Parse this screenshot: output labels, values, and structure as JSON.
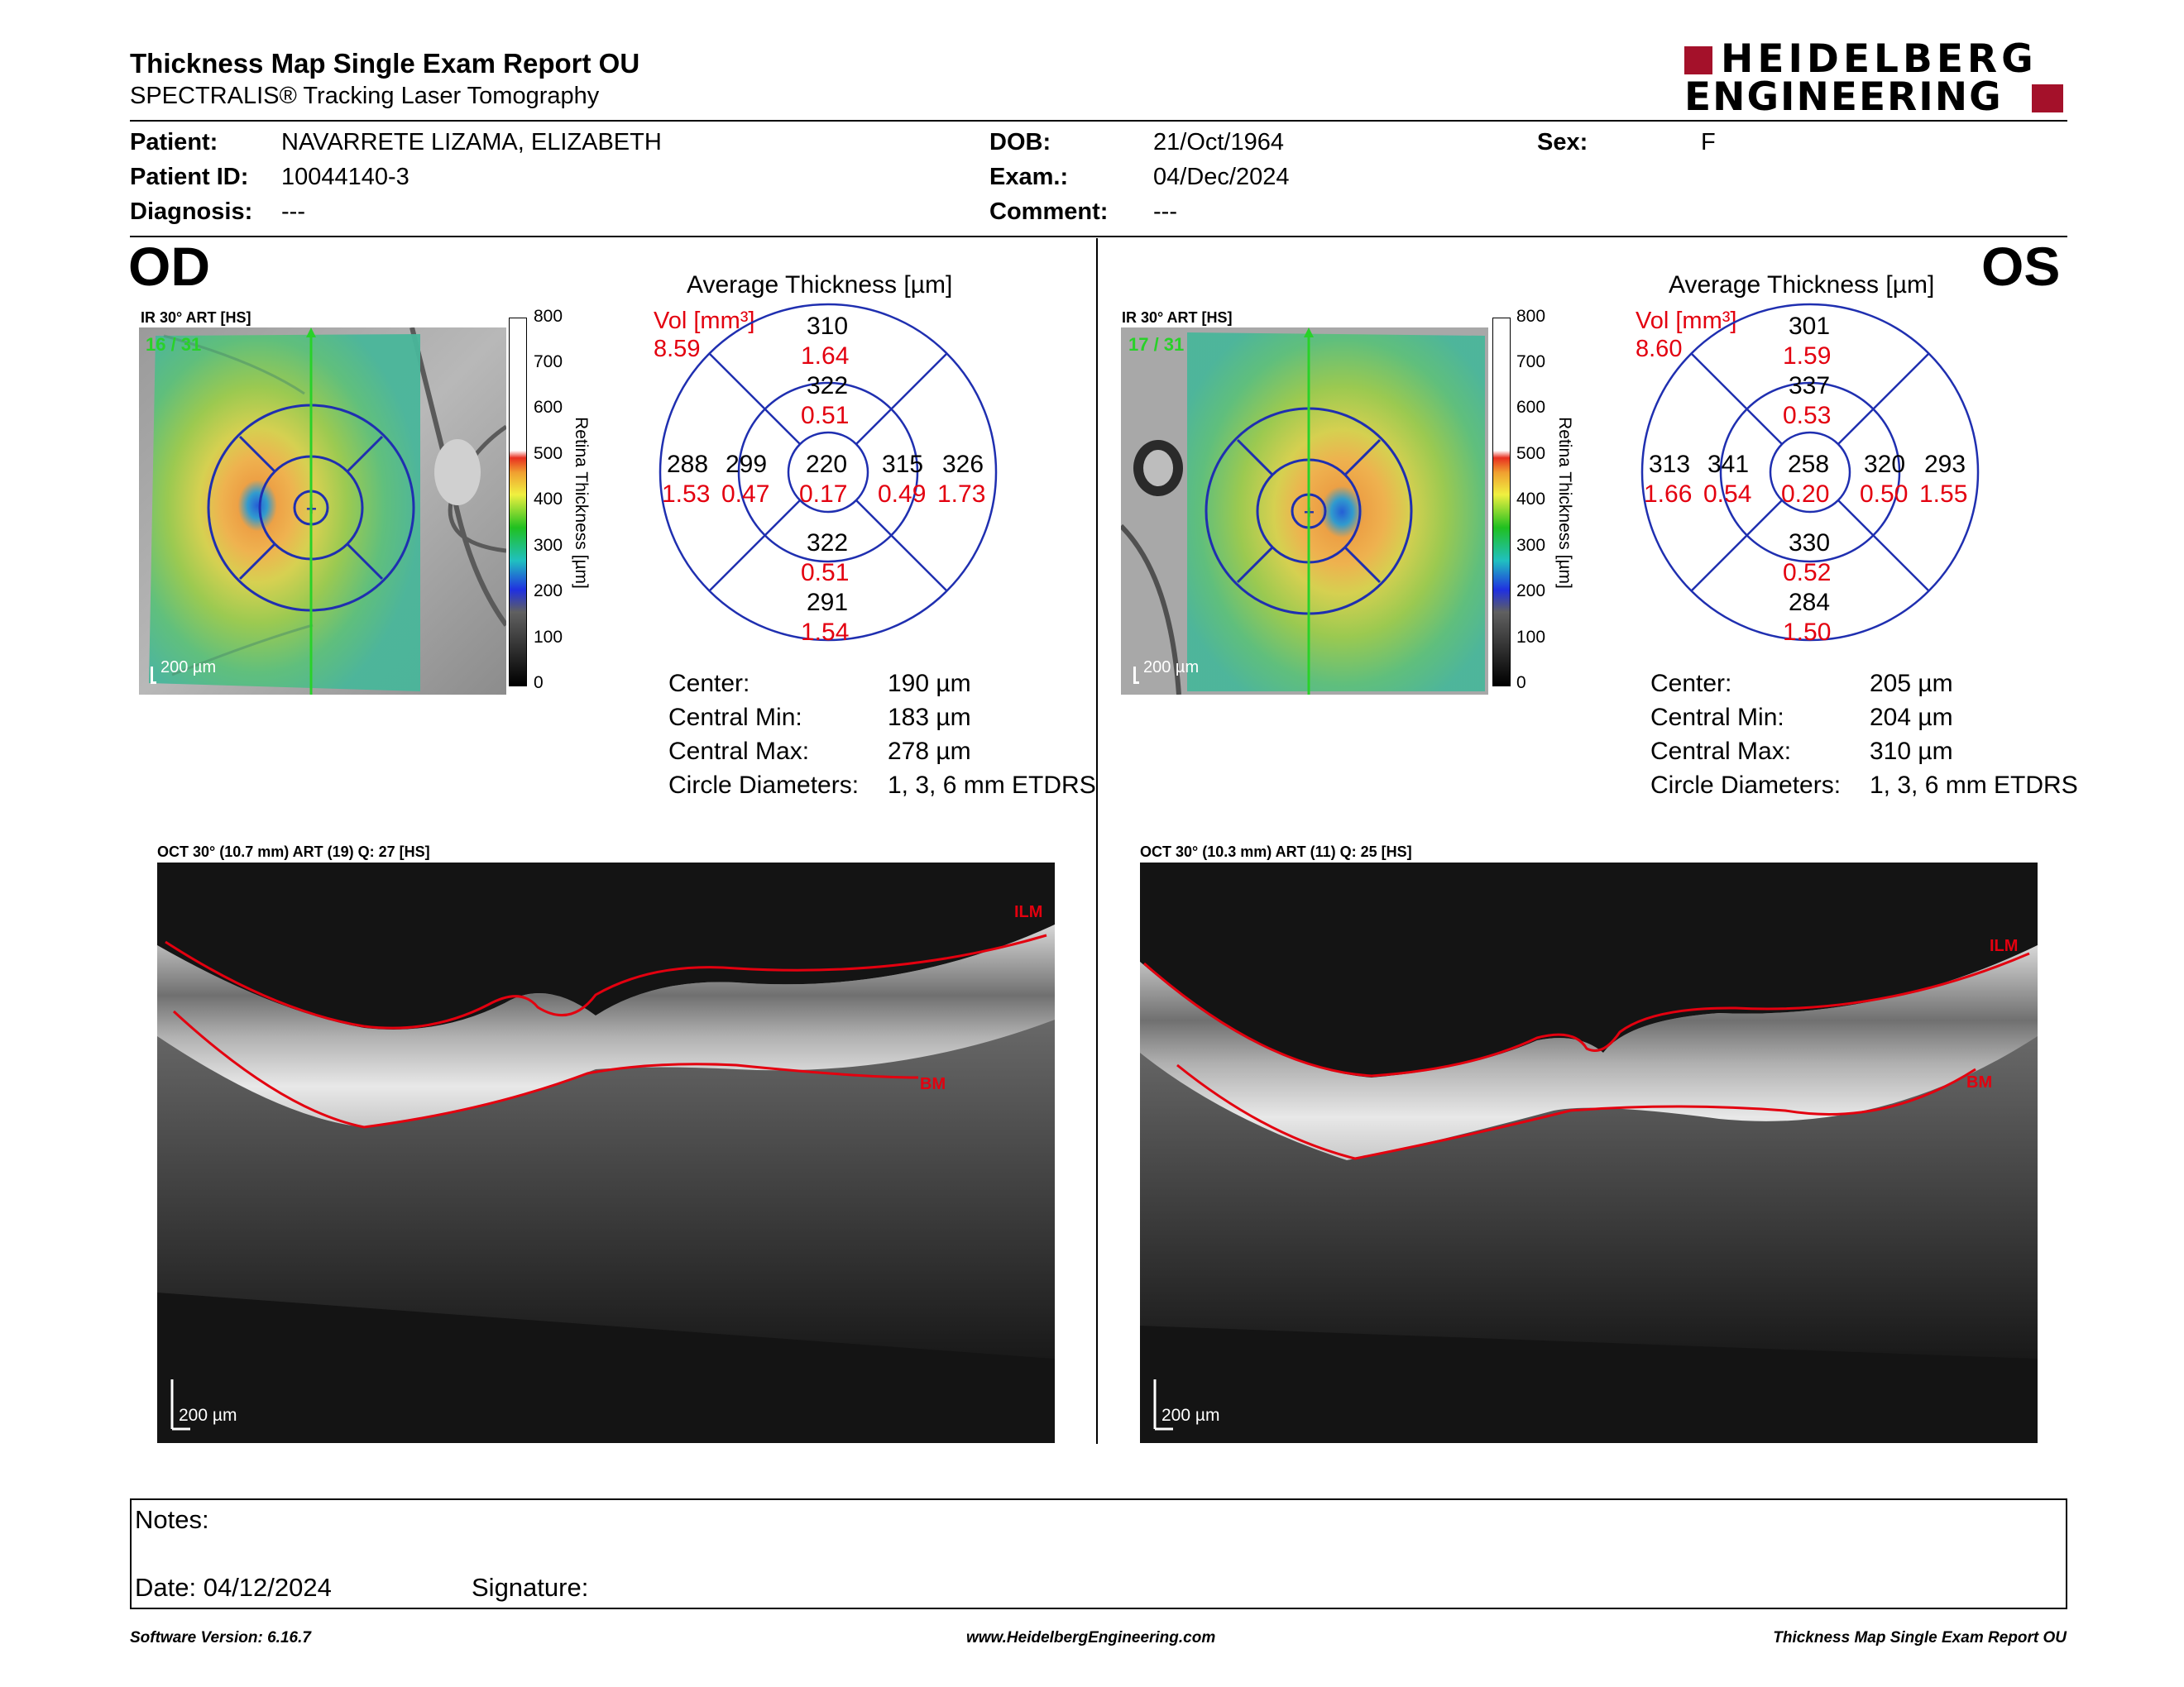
{
  "header": {
    "title": "Thickness Map Single Exam Report OU",
    "subtitle": "SPECTRALIS® Tracking Laser Tomography",
    "logo_line1": "HEIDELBERG",
    "logo_line2": "ENGINEERING"
  },
  "patient": {
    "patient_label": "Patient:",
    "patient_value": "NAVARRETE LIZAMA, ELIZABETH",
    "id_label": "Patient ID:",
    "id_value": "10044140-3",
    "diagnosis_label": "Diagnosis:",
    "diagnosis_value": "---",
    "dob_label": "DOB:",
    "dob_value": "21/Oct/1964",
    "exam_label": "Exam.:",
    "exam_value": "04/Dec/2024",
    "comment_label": "Comment:",
    "comment_value": "---",
    "sex_label": "Sex:",
    "sex_value": "F"
  },
  "od": {
    "eye": "OD",
    "ir_label": "IR 30° ART [HS]",
    "frames": "16 / 31",
    "scale": "200 µm",
    "avg_title": "Average Thickness [µm]",
    "vol_label": "Vol [mm³]",
    "vol_value": "8.59",
    "grid": {
      "sup_outer": "310",
      "sup_outer_vol": "1.64",
      "sup_inner": "322",
      "sup_inner_vol": "0.51",
      "left_outer": "288",
      "left_outer_vol": "1.53",
      "left_inner": "299",
      "left_inner_vol": "0.47",
      "center": "220",
      "center_vol": "0.17",
      "right_inner": "315",
      "right_inner_vol": "0.49",
      "right_outer": "326",
      "right_outer_vol": "1.73",
      "inf_inner": "322",
      "inf_inner_vol": "0.51",
      "inf_outer": "291",
      "inf_outer_vol": "1.54"
    },
    "stats": {
      "center_label": "Center:",
      "center_value": "190 µm",
      "cmin_label": "Central Min:",
      "cmin_value": "183 µm",
      "cmax_label": "Central Max:",
      "cmax_value": "278 µm",
      "circ_label": "Circle Diameters:",
      "circ_value": "1, 3, 6 mm ETDRS"
    },
    "oct_label": "OCT 30° (10.7 mm) ART (19) Q: 27 [HS]",
    "oct_scale": "200 µm",
    "ilm": "ILM",
    "bm": "BM"
  },
  "os": {
    "eye": "OS",
    "ir_label": "IR 30° ART [HS]",
    "frames": "17 / 31",
    "scale": "200 µm",
    "avg_title": "Average Thickness [µm]",
    "vol_label": "Vol [mm³]",
    "vol_value": "8.60",
    "grid": {
      "sup_outer": "301",
      "sup_outer_vol": "1.59",
      "sup_inner": "337",
      "sup_inner_vol": "0.53",
      "left_outer": "313",
      "left_outer_vol": "1.66",
      "left_inner": "341",
      "left_inner_vol": "0.54",
      "center": "258",
      "center_vol": "0.20",
      "right_inner": "320",
      "right_inner_vol": "0.50",
      "right_outer": "293",
      "right_outer_vol": "1.55",
      "inf_inner": "330",
      "inf_inner_vol": "0.52",
      "inf_outer": "284",
      "inf_outer_vol": "1.50"
    },
    "stats": {
      "center_label": "Center:",
      "center_value": "205 µm",
      "cmin_label": "Central Min:",
      "cmin_value": "204 µm",
      "cmax_label": "Central Max:",
      "cmax_value": "310 µm",
      "circ_label": "Circle Diameters:",
      "circ_value": "1, 3, 6 mm ETDRS"
    },
    "oct_label": "OCT 30° (10.3 mm) ART (11) Q: 25 [HS]",
    "oct_scale": "200 µm",
    "ilm": "ILM",
    "bm": "BM"
  },
  "colorbar": {
    "ticks": [
      "800",
      "700",
      "600",
      "500",
      "400",
      "300",
      "200",
      "100",
      "0"
    ],
    "title": "Retina Thickness [µm]"
  },
  "notes": {
    "notes_label": "Notes:",
    "date_label": "Date: 04/12/2024",
    "signature_label": "Signature:"
  },
  "footer": {
    "software": "Software Version: 6.16.7",
    "website": "www.HeidelbergEngineering.com",
    "report": "Thickness Map Single Exam Report OU"
  },
  "colors": {
    "accent_red": "#e3000f",
    "logo_red": "#a4112a",
    "grid_blue": "#1f2fb0",
    "scan_green": "#29d129"
  }
}
